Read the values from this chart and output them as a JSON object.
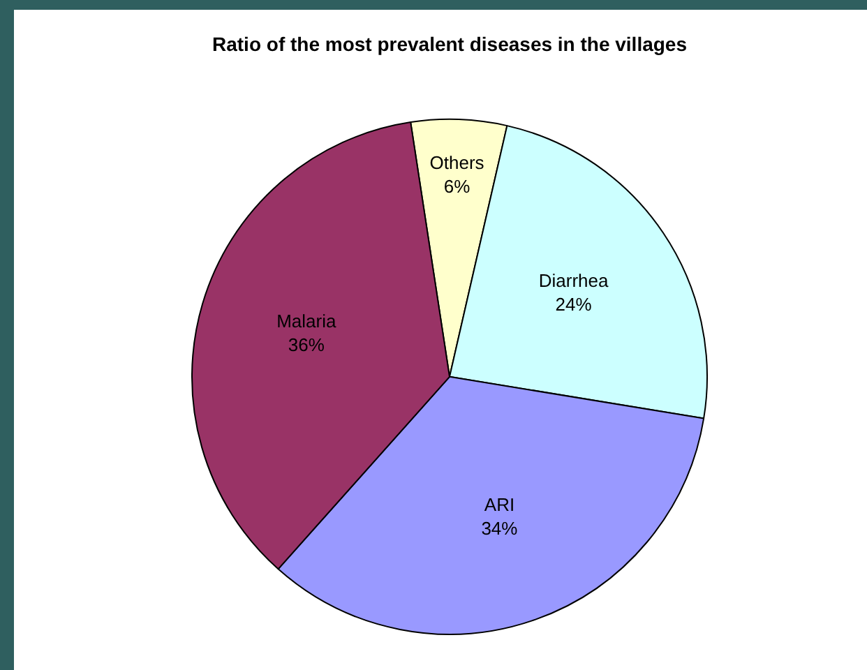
{
  "chart_data": {
    "type": "pie",
    "title": "Ratio of the most prevalent diseases in the villages",
    "categories": [
      "Others",
      "Diarrhea",
      "ARI",
      "Malaria"
    ],
    "values": [
      6,
      24,
      34,
      36
    ],
    "value_labels": [
      "6%",
      "24%",
      "34%",
      "36%"
    ],
    "colors": [
      "#ffffcc",
      "#ccffff",
      "#9999ff",
      "#993366"
    ],
    "legend": false
  }
}
